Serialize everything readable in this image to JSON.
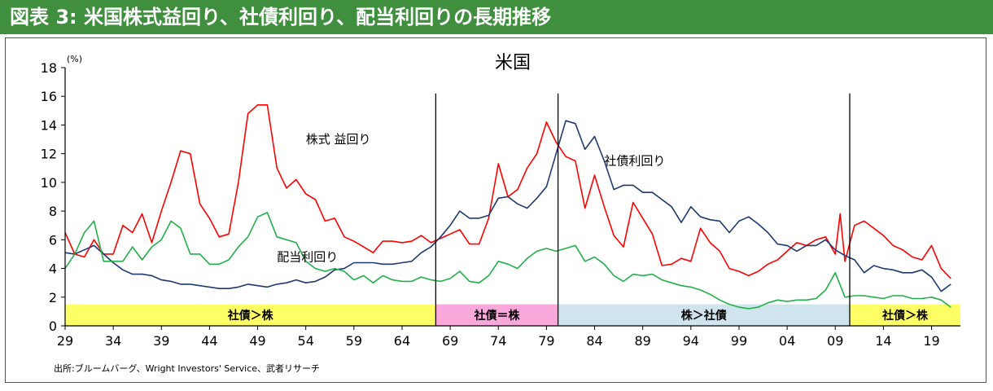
{
  "header": {
    "title": "図表 3: 米国株式益回り、社債利回り、配当利回りの長期推移"
  },
  "source": "出所:ブルームバーグ、Wright Investors' Service、武者リサーチ",
  "colors": {
    "header_bg": "#3f8f3f",
    "earnings": "#ff0000",
    "bond": "#1f3a70",
    "dividend": "#22b04a",
    "band_yellow": "#ffff66",
    "band_pink": "#f9a8dc",
    "band_blue": "#cfe4ec"
  },
  "chart_data": {
    "type": "line",
    "title": "米国",
    "ylabel": "(%)",
    "xlabel": "",
    "ylim": [
      0,
      18
    ],
    "xlim": [
      1929,
      2022
    ],
    "yticks": [
      0,
      2,
      4,
      6,
      8,
      10,
      12,
      14,
      16,
      18
    ],
    "xtick_labels": [
      "29",
      "34",
      "39",
      "44",
      "49",
      "54",
      "59",
      "64",
      "69",
      "74",
      "79",
      "84",
      "89",
      "94",
      "99",
      "04",
      "09",
      "14",
      "19"
    ],
    "xtick_years": [
      1929,
      1934,
      1939,
      1944,
      1949,
      1954,
      1959,
      1964,
      1969,
      1974,
      1979,
      1984,
      1989,
      1994,
      1999,
      2004,
      2009,
      2014,
      2019
    ],
    "grid": false,
    "legend": "inline labels",
    "dividers": [
      1967.5,
      1980.2,
      2010.5
    ],
    "regimes": [
      {
        "label": "社債＞株",
        "start": 1929,
        "end": 1967.5,
        "color": "yellow"
      },
      {
        "label": "社債＝株",
        "start": 1967.5,
        "end": 1980.2,
        "color": "pink"
      },
      {
        "label": "株＞社債",
        "start": 1980.2,
        "end": 2010.5,
        "color": "blue"
      },
      {
        "label": "社債＞株",
        "start": 2010.5,
        "end": 2022,
        "color": "yellow"
      }
    ],
    "series": [
      {
        "name": "株式 益回り",
        "color_key": "earnings",
        "label_at": [
          1954,
          13
        ],
        "points": [
          [
            1929,
            6.5
          ],
          [
            1930,
            5.0
          ],
          [
            1931,
            4.8
          ],
          [
            1932,
            6.0
          ],
          [
            1933,
            5.0
          ],
          [
            1934,
            5.0
          ],
          [
            1935,
            7.0
          ],
          [
            1936,
            6.5
          ],
          [
            1937,
            7.8
          ],
          [
            1938,
            5.8
          ],
          [
            1939,
            8.0
          ],
          [
            1940,
            10.0
          ],
          [
            1941,
            12.2
          ],
          [
            1942,
            12.0
          ],
          [
            1943,
            8.5
          ],
          [
            1944,
            7.5
          ],
          [
            1945,
            6.2
          ],
          [
            1946,
            6.4
          ],
          [
            1947,
            10.0
          ],
          [
            1948,
            14.8
          ],
          [
            1949,
            15.4
          ],
          [
            1950,
            15.4
          ],
          [
            1951,
            11.0
          ],
          [
            1952,
            9.6
          ],
          [
            1953,
            10.2
          ],
          [
            1954,
            9.2
          ],
          [
            1955,
            8.8
          ],
          [
            1956,
            7.3
          ],
          [
            1957,
            7.5
          ],
          [
            1958,
            6.2
          ],
          [
            1959,
            5.9
          ],
          [
            1960,
            5.5
          ],
          [
            1961,
            5.1
          ],
          [
            1962,
            5.9
          ],
          [
            1963,
            5.9
          ],
          [
            1964,
            5.8
          ],
          [
            1965,
            5.9
          ],
          [
            1966,
            6.3
          ],
          [
            1967,
            5.8
          ],
          [
            1968,
            6.1
          ],
          [
            1969,
            6.4
          ],
          [
            1970,
            6.7
          ],
          [
            1971,
            5.7
          ],
          [
            1972,
            5.7
          ],
          [
            1973,
            7.5
          ],
          [
            1974,
            11.3
          ],
          [
            1975,
            9.0
          ],
          [
            1976,
            9.5
          ],
          [
            1977,
            11.0
          ],
          [
            1978,
            12.0
          ],
          [
            1979,
            14.2
          ],
          [
            1980,
            12.8
          ],
          [
            1981,
            11.8
          ],
          [
            1982,
            11.5
          ],
          [
            1983,
            8.2
          ],
          [
            1984,
            10.5
          ],
          [
            1985,
            8.3
          ],
          [
            1986,
            6.3
          ],
          [
            1987,
            5.5
          ],
          [
            1988,
            8.6
          ],
          [
            1989,
            7.5
          ],
          [
            1990,
            6.4
          ],
          [
            1991,
            4.2
          ],
          [
            1992,
            4.3
          ],
          [
            1993,
            4.7
          ],
          [
            1994,
            4.5
          ],
          [
            1995,
            6.8
          ],
          [
            1996,
            5.8
          ],
          [
            1997,
            5.2
          ],
          [
            1998,
            4.0
          ],
          [
            1999,
            3.8
          ],
          [
            2000,
            3.5
          ],
          [
            2001,
            3.8
          ],
          [
            2002,
            4.3
          ],
          [
            2003,
            4.6
          ],
          [
            2004,
            5.2
          ],
          [
            2005,
            5.8
          ],
          [
            2006,
            5.6
          ],
          [
            2007,
            6.0
          ],
          [
            2008,
            6.2
          ],
          [
            2009,
            5.0
          ],
          [
            2009.5,
            7.8
          ],
          [
            2010,
            4.5
          ],
          [
            2011,
            7.0
          ],
          [
            2012,
            7.3
          ],
          [
            2013,
            6.8
          ],
          [
            2014,
            6.3
          ],
          [
            2015,
            5.6
          ],
          [
            2016,
            5.3
          ],
          [
            2017,
            4.8
          ],
          [
            2018,
            4.6
          ],
          [
            2019,
            5.6
          ],
          [
            2020,
            4.0
          ],
          [
            2021,
            3.3
          ]
        ]
      },
      {
        "name": "社債利回り",
        "color_key": "bond",
        "label_at": [
          1985,
          11.5
        ],
        "points": [
          [
            1929,
            5.1
          ],
          [
            1930,
            5.0
          ],
          [
            1931,
            5.3
          ],
          [
            1932,
            5.6
          ],
          [
            1933,
            5.0
          ],
          [
            1934,
            4.4
          ],
          [
            1935,
            3.9
          ],
          [
            1936,
            3.6
          ],
          [
            1937,
            3.6
          ],
          [
            1938,
            3.5
          ],
          [
            1939,
            3.2
          ],
          [
            1940,
            3.1
          ],
          [
            1941,
            2.9
          ],
          [
            1942,
            2.9
          ],
          [
            1943,
            2.8
          ],
          [
            1944,
            2.7
          ],
          [
            1945,
            2.6
          ],
          [
            1946,
            2.6
          ],
          [
            1947,
            2.7
          ],
          [
            1948,
            2.9
          ],
          [
            1949,
            2.8
          ],
          [
            1950,
            2.7
          ],
          [
            1951,
            2.9
          ],
          [
            1952,
            3.0
          ],
          [
            1953,
            3.2
          ],
          [
            1954,
            3.0
          ],
          [
            1955,
            3.1
          ],
          [
            1956,
            3.4
          ],
          [
            1957,
            3.9
          ],
          [
            1958,
            4.0
          ],
          [
            1959,
            4.4
          ],
          [
            1960,
            4.4
          ],
          [
            1961,
            4.4
          ],
          [
            1962,
            4.3
          ],
          [
            1963,
            4.3
          ],
          [
            1964,
            4.4
          ],
          [
            1965,
            4.5
          ],
          [
            1966,
            5.1
          ],
          [
            1967,
            5.5
          ],
          [
            1968,
            6.2
          ],
          [
            1969,
            7.0
          ],
          [
            1970,
            8.0
          ],
          [
            1971,
            7.5
          ],
          [
            1972,
            7.5
          ],
          [
            1973,
            7.7
          ],
          [
            1974,
            8.9
          ],
          [
            1975,
            9.0
          ],
          [
            1976,
            8.5
          ],
          [
            1977,
            8.2
          ],
          [
            1978,
            8.9
          ],
          [
            1979,
            9.7
          ],
          [
            1980,
            12.0
          ],
          [
            1981,
            14.3
          ],
          [
            1982,
            14.1
          ],
          [
            1983,
            12.3
          ],
          [
            1984,
            13.2
          ],
          [
            1985,
            11.5
          ],
          [
            1986,
            9.5
          ],
          [
            1987,
            9.8
          ],
          [
            1988,
            9.8
          ],
          [
            1989,
            9.3
          ],
          [
            1990,
            9.3
          ],
          [
            1991,
            8.8
          ],
          [
            1992,
            8.3
          ],
          [
            1993,
            7.2
          ],
          [
            1994,
            8.3
          ],
          [
            1995,
            7.6
          ],
          [
            1996,
            7.4
          ],
          [
            1997,
            7.3
          ],
          [
            1998,
            6.5
          ],
          [
            1999,
            7.3
          ],
          [
            2000,
            7.6
          ],
          [
            2001,
            7.1
          ],
          [
            2002,
            6.5
          ],
          [
            2003,
            5.7
          ],
          [
            2004,
            5.6
          ],
          [
            2005,
            5.2
          ],
          [
            2006,
            5.6
          ],
          [
            2007,
            5.6
          ],
          [
            2008,
            6.0
          ],
          [
            2009,
            5.3
          ],
          [
            2010,
            4.9
          ],
          [
            2011,
            4.6
          ],
          [
            2012,
            3.7
          ],
          [
            2013,
            4.2
          ],
          [
            2014,
            4.0
          ],
          [
            2015,
            3.9
          ],
          [
            2016,
            3.7
          ],
          [
            2017,
            3.7
          ],
          [
            2018,
            3.9
          ],
          [
            2019,
            3.4
          ],
          [
            2020,
            2.4
          ],
          [
            2021,
            2.9
          ]
        ]
      },
      {
        "name": "配当利回り",
        "color_key": "dividend",
        "label_at": [
          1951,
          4.8
        ],
        "points": [
          [
            1929,
            4.0
          ],
          [
            1930,
            5.0
          ],
          [
            1931,
            6.5
          ],
          [
            1932,
            7.3
          ],
          [
            1933,
            4.5
          ],
          [
            1934,
            4.5
          ],
          [
            1935,
            4.5
          ],
          [
            1936,
            5.5
          ],
          [
            1937,
            4.6
          ],
          [
            1938,
            5.5
          ],
          [
            1939,
            6.0
          ],
          [
            1940,
            7.3
          ],
          [
            1941,
            6.8
          ],
          [
            1942,
            5.0
          ],
          [
            1943,
            5.0
          ],
          [
            1944,
            4.3
          ],
          [
            1945,
            4.3
          ],
          [
            1946,
            4.6
          ],
          [
            1947,
            5.5
          ],
          [
            1948,
            6.2
          ],
          [
            1949,
            7.6
          ],
          [
            1950,
            7.9
          ],
          [
            1951,
            6.2
          ],
          [
            1952,
            6.0
          ],
          [
            1953,
            5.8
          ],
          [
            1954,
            4.5
          ],
          [
            1955,
            4.0
          ],
          [
            1956,
            3.8
          ],
          [
            1957,
            4.0
          ],
          [
            1958,
            3.8
          ],
          [
            1959,
            3.2
          ],
          [
            1960,
            3.5
          ],
          [
            1961,
            3.0
          ],
          [
            1962,
            3.5
          ],
          [
            1963,
            3.2
          ],
          [
            1964,
            3.1
          ],
          [
            1965,
            3.1
          ],
          [
            1966,
            3.4
          ],
          [
            1967,
            3.2
          ],
          [
            1968,
            3.1
          ],
          [
            1969,
            3.3
          ],
          [
            1970,
            3.8
          ],
          [
            1971,
            3.1
          ],
          [
            1972,
            3.0
          ],
          [
            1973,
            3.5
          ],
          [
            1974,
            4.5
          ],
          [
            1975,
            4.3
          ],
          [
            1976,
            4.0
          ],
          [
            1977,
            4.7
          ],
          [
            1978,
            5.2
          ],
          [
            1979,
            5.4
          ],
          [
            1980,
            5.2
          ],
          [
            1981,
            5.4
          ],
          [
            1982,
            5.6
          ],
          [
            1983,
            4.5
          ],
          [
            1984,
            4.8
          ],
          [
            1985,
            4.3
          ],
          [
            1986,
            3.5
          ],
          [
            1987,
            3.1
          ],
          [
            1988,
            3.6
          ],
          [
            1989,
            3.5
          ],
          [
            1990,
            3.6
          ],
          [
            1991,
            3.2
          ],
          [
            1992,
            3.0
          ],
          [
            1993,
            2.8
          ],
          [
            1994,
            2.7
          ],
          [
            1995,
            2.5
          ],
          [
            1996,
            2.2
          ],
          [
            1997,
            1.8
          ],
          [
            1998,
            1.5
          ],
          [
            1999,
            1.3
          ],
          [
            2000,
            1.2
          ],
          [
            2001,
            1.3
          ],
          [
            2002,
            1.6
          ],
          [
            2003,
            1.8
          ],
          [
            2004,
            1.7
          ],
          [
            2005,
            1.8
          ],
          [
            2006,
            1.8
          ],
          [
            2007,
            1.9
          ],
          [
            2008,
            2.5
          ],
          [
            2009,
            3.7
          ],
          [
            2010,
            2.0
          ],
          [
            2011,
            2.1
          ],
          [
            2012,
            2.1
          ],
          [
            2013,
            2.0
          ],
          [
            2014,
            1.9
          ],
          [
            2015,
            2.1
          ],
          [
            2016,
            2.1
          ],
          [
            2017,
            1.9
          ],
          [
            2018,
            1.9
          ],
          [
            2019,
            2.0
          ],
          [
            2020,
            1.8
          ],
          [
            2021,
            1.3
          ]
        ]
      }
    ]
  }
}
